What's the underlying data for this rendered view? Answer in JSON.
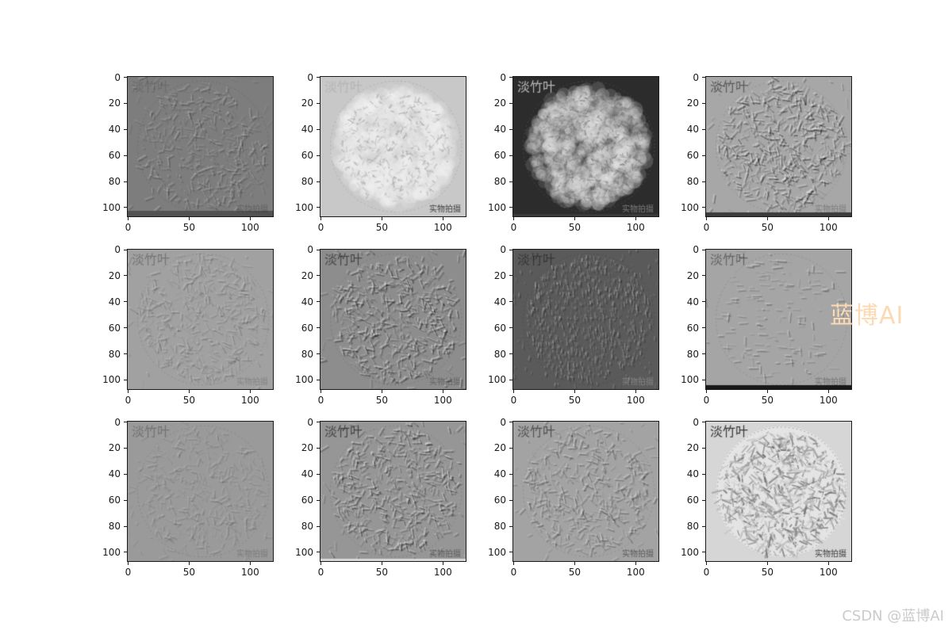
{
  "watermark": {
    "text": "蓝博AI",
    "color": "#fbd9b2"
  },
  "credit": {
    "text": "CSDN @蓝博AI",
    "color": "#cbcbcb"
  },
  "chart_data": {
    "type": "heatmap",
    "title": "",
    "description": "3x4 grid of grayscale convolutional feature maps of a round dish of dried bamboo leaves (淡竹叶); last subplot is the original grayscale photo",
    "grid": {
      "rows": 3,
      "cols": 4
    },
    "x_ticks": [
      0,
      50,
      100
    ],
    "y_ticks": [
      0,
      20,
      40,
      60,
      80,
      100
    ],
    "x_range": [
      0,
      119
    ],
    "y_range": [
      0,
      107
    ],
    "axis_color": "#1a1a1a",
    "subplots": [
      {
        "name": "feature-map-r1c1",
        "row": 0,
        "col": 0,
        "style": "emboss",
        "base": "#7d7d7d",
        "contrast": 0.5,
        "strokes": 520,
        "label_top_left": {
          "text": "淡竹叶",
          "color": "#000000",
          "alpha": 0.14
        },
        "label_bottom_right": {
          "text": "实物拍摄",
          "color": "#000000",
          "alpha": 0.22
        },
        "bottom_strip": {
          "color": "#525252",
          "height": 7
        }
      },
      {
        "name": "feature-map-r1c2",
        "row": 0,
        "col": 1,
        "style": "blob",
        "base": "#c8c8c8",
        "blob": "#f6f6f6",
        "speck": "#8f8f8f",
        "contrast": 0.8,
        "label_top_left": {
          "text": "淡竹叶",
          "color": "#aaaaaa",
          "alpha": 0.6
        },
        "label_bottom_right": {
          "text": "实物拍摄",
          "color": "#2f2f2f",
          "alpha": 0.88
        },
        "bottom_strip": null
      },
      {
        "name": "feature-map-r1c3",
        "row": 0,
        "col": 2,
        "style": "blob",
        "base": "#2c2c2c",
        "blob": "#efefef",
        "speck": "#5d5d5d",
        "contrast": 1.0,
        "label_top_left": {
          "text": "淡竹叶",
          "color": "#d8d8d8",
          "alpha": 0.8
        },
        "label_bottom_right": {
          "text": "实物拍摄",
          "color": "#9a9a9a",
          "alpha": 0.7
        },
        "bottom_strip": {
          "color": "#3a3a3a",
          "height": 3
        }
      },
      {
        "name": "feature-map-r1c4",
        "row": 0,
        "col": 3,
        "style": "emboss",
        "base": "#a7a7a7",
        "contrast": 0.95,
        "strokes": 700,
        "label_top_left": {
          "text": "淡竹叶",
          "color": "#000000",
          "alpha": 0.45
        },
        "label_bottom_right": {
          "text": "实物拍摄",
          "color": "#000000",
          "alpha": 0.25
        },
        "bottom_strip": {
          "color": "#3c3c3c",
          "height": 5
        }
      },
      {
        "name": "feature-map-r2c1",
        "row": 1,
        "col": 0,
        "style": "emboss",
        "base": "#a1a1a1",
        "contrast": 0.4,
        "strokes": 560,
        "label_top_left": {
          "text": "淡竹叶",
          "color": "#000000",
          "alpha": 0.28
        },
        "label_bottom_right": {
          "text": "实物拍摄",
          "color": "#000000",
          "alpha": 0.18
        },
        "bottom_strip": null
      },
      {
        "name": "feature-map-r2c2",
        "row": 1,
        "col": 1,
        "style": "emboss",
        "base": "#8d8d8d",
        "contrast": 0.9,
        "strokes": 680,
        "label_top_left": {
          "text": "淡竹叶",
          "color": "#000000",
          "alpha": 0.5
        },
        "label_bottom_right": {
          "text": "实物拍摄",
          "color": "#000000",
          "alpha": 0.3
        },
        "bottom_strip": null
      },
      {
        "name": "feature-map-r2c3",
        "row": 1,
        "col": 2,
        "style": "stripes",
        "base": "#5a5a5a",
        "contrast": 0.55,
        "strokes": 1100,
        "label_top_left": {
          "text": "淡竹叶",
          "color": "#000000",
          "alpha": 0.4
        },
        "label_bottom_right": {
          "text": "实物拍摄",
          "color": "#c0c0c0",
          "alpha": 0.4
        },
        "bottom_strip": null
      },
      {
        "name": "feature-map-r2c4",
        "row": 1,
        "col": 3,
        "style": "sparse",
        "base": "#a5a5a5",
        "contrast": 0.6,
        "strokes": 170,
        "label_top_left": {
          "text": "淡竹叶",
          "color": "#000000",
          "alpha": 0.4
        },
        "label_bottom_right": {
          "text": "实物拍摄",
          "color": "#000000",
          "alpha": 0.3
        },
        "bottom_strip": {
          "color": "#181818",
          "height": 5
        }
      },
      {
        "name": "feature-map-r3c1",
        "row": 2,
        "col": 0,
        "style": "emboss",
        "base": "#9a9a9a",
        "contrast": 0.3,
        "strokes": 500,
        "label_top_left": {
          "text": "淡竹叶",
          "color": "#000000",
          "alpha": 0.26
        },
        "label_bottom_right": {
          "text": "实物拍摄",
          "color": "#000000",
          "alpha": 0.2
        },
        "bottom_strip": null
      },
      {
        "name": "feature-map-r3c2",
        "row": 2,
        "col": 1,
        "style": "emboss",
        "base": "#969696",
        "contrast": 0.85,
        "strokes": 680,
        "label_top_left": {
          "text": "淡竹叶",
          "color": "#000000",
          "alpha": 0.55
        },
        "label_bottom_right": {
          "text": "实物拍摄",
          "color": "#000000",
          "alpha": 0.38
        },
        "bottom_strip": {
          "color": "#d8d8d8",
          "height": 3
        }
      },
      {
        "name": "feature-map-r3c3",
        "row": 2,
        "col": 2,
        "style": "emboss",
        "base": "#a3a3a3",
        "contrast": 0.65,
        "strokes": 560,
        "label_top_left": {
          "text": "淡竹叶",
          "color": "#000000",
          "alpha": 0.5
        },
        "label_bottom_right": {
          "text": "实物拍摄",
          "color": "#2e2e2e",
          "alpha": 0.6
        },
        "bottom_strip": null
      },
      {
        "name": "feature-map-r3c4",
        "row": 2,
        "col": 3,
        "style": "photo",
        "base": "#d6d6d6",
        "plate": "#e4e4e4",
        "contrast": 1.0,
        "label_top_left": {
          "text": "淡竹叶",
          "color": "#2b2b2b",
          "alpha": 0.92
        },
        "label_bottom_right": {
          "text": "实物拍摄",
          "color": "#2b2b2b",
          "alpha": 0.88
        },
        "bottom_strip": null
      }
    ]
  }
}
